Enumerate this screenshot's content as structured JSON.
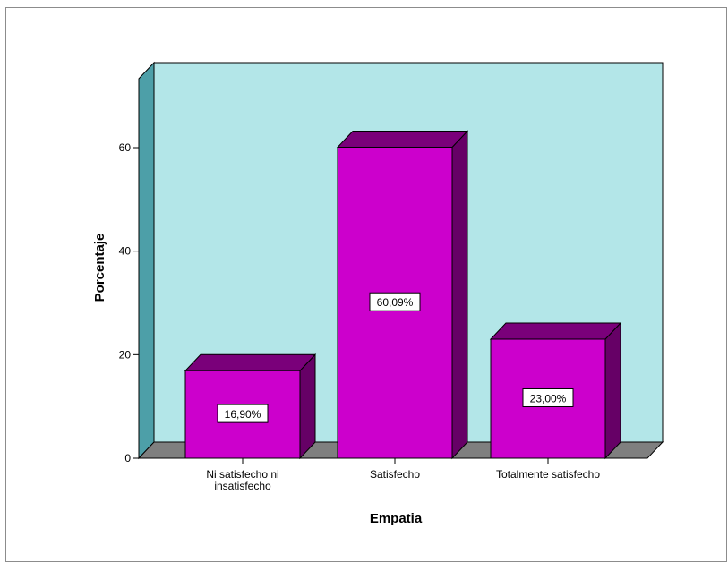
{
  "chart_data": {
    "type": "bar",
    "xlabel": "Empatia",
    "ylabel": "Porcentaje",
    "categories": [
      [
        "Ni satisfecho ni",
        "insatisfecho"
      ],
      [
        "Satisfecho"
      ],
      [
        "Totalmente satisfecho"
      ]
    ],
    "values": [
      16.9,
      60.09,
      23.0
    ],
    "data_labels": [
      "16,90%",
      "60,09%",
      "23,00%"
    ],
    "yticks": [
      "0",
      "20",
      "40",
      "60"
    ],
    "ylim": [
      0,
      72
    ],
    "three_d": true,
    "grid": false,
    "legend": "none",
    "colors": {
      "bar_front": "#cc00cc",
      "bar_top": "#7a007a",
      "bar_side": "#660066",
      "wall": "#b3e6e8",
      "floor": "#7f7f7f",
      "side_wall": "#4d9fa8",
      "outline": "#000000"
    }
  }
}
